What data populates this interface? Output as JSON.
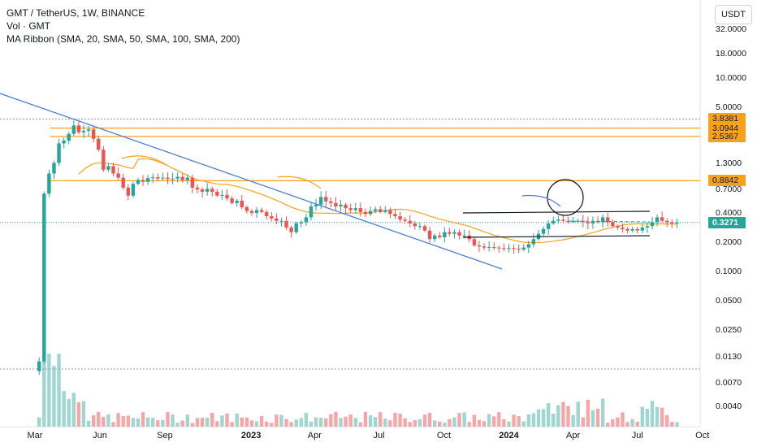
{
  "legend": {
    "title": "GMT / TetherUS, 1W, BINANCE",
    "volume": "Vol · GMT",
    "ribbon": "MA Ribbon (SMA, 20, SMA, 50, SMA, 100, SMA, 200)"
  },
  "currency_button": "USDT",
  "colors": {
    "up": "#26a69a",
    "down": "#ef5350",
    "vol_up": "#9fd6d0",
    "vol_down": "#f4a7a6",
    "trendline": "#4a7fd8",
    "level": "#f7a21b",
    "ma": "#f7a21b",
    "current_price": "#26a69a",
    "channel": "#131722",
    "arc": "#5b7bd6"
  },
  "chart_data": {
    "type": "candlestick",
    "title": "GMT / TetherUS, 1W, BINANCE",
    "y_scale": "log",
    "y_ticks": [
      "32.0000",
      "18.0000",
      "10.0000",
      "5.0000",
      "1.3000",
      "0.7000",
      "0.4000",
      "0.2000",
      "0.1000",
      "0.0500",
      "0.0250",
      "0.0130",
      "0.0070",
      "0.0040"
    ],
    "x_ticks": [
      {
        "label": "Mar",
        "date": "2022-03",
        "bold": false
      },
      {
        "label": "Jun",
        "date": "2022-06",
        "bold": false
      },
      {
        "label": "Sep",
        "date": "2022-09",
        "bold": false
      },
      {
        "label": "2023",
        "date": "2023-01",
        "bold": true
      },
      {
        "label": "Apr",
        "date": "2023-04",
        "bold": false
      },
      {
        "label": "Jul",
        "date": "2023-07",
        "bold": false
      },
      {
        "label": "Oct",
        "date": "2023-10",
        "bold": false
      },
      {
        "label": "2024",
        "date": "2024-01",
        "bold": true
      },
      {
        "label": "Apr",
        "date": "2024-04",
        "bold": false
      },
      {
        "label": "Jul",
        "date": "2024-07",
        "bold": false
      },
      {
        "label": "Oct",
        "date": "2024-10",
        "bold": false
      }
    ],
    "horizontal_levels": [
      {
        "value": 3.8381,
        "label": "3.8381"
      },
      {
        "value": 3.0944,
        "label": "3.0944"
      },
      {
        "value": 2.5367,
        "label": "2.5367"
      },
      {
        "value": 0.8842,
        "label": "0.8842"
      }
    ],
    "current_price": {
      "value": 0.3271,
      "label": "0.3271"
    },
    "series": [
      {
        "name": "GMT",
        "date_start": "2022-03-07",
        "interval": "week",
        "close": [
          0.012,
          0.65,
          1.05,
          1.35,
          2.15,
          2.3,
          2.7,
          3.3,
          2.8,
          2.9,
          3.0,
          2.4,
          1.85,
          1.15,
          1.25,
          1.05,
          0.95,
          0.75,
          0.62,
          0.82,
          0.9,
          0.86,
          0.94,
          0.96,
          0.93,
          0.95,
          0.92,
          0.93,
          0.97,
          0.9,
          0.95,
          0.75,
          0.72,
          0.68,
          0.73,
          0.68,
          0.62,
          0.63,
          0.58,
          0.52,
          0.55,
          0.47,
          0.43,
          0.41,
          0.44,
          0.42,
          0.38,
          0.36,
          0.34,
          0.34,
          0.29,
          0.26,
          0.32,
          0.33,
          0.37,
          0.48,
          0.5,
          0.6,
          0.54,
          0.52,
          0.48,
          0.5,
          0.46,
          0.44,
          0.46,
          0.42,
          0.4,
          0.43,
          0.45,
          0.42,
          0.44,
          0.4,
          0.38,
          0.35,
          0.34,
          0.32,
          0.3,
          0.3,
          0.27,
          0.22,
          0.24,
          0.23,
          0.26,
          0.25,
          0.26,
          0.24,
          0.24,
          0.22,
          0.19,
          0.185,
          0.18,
          0.182,
          0.18,
          0.178,
          0.176,
          0.178,
          0.175,
          0.172,
          0.18,
          0.195,
          0.22,
          0.25,
          0.28,
          0.32,
          0.34,
          0.35,
          0.34,
          0.33,
          0.34,
          0.34,
          0.33,
          0.32,
          0.34,
          0.33,
          0.37,
          0.33,
          0.3,
          0.29,
          0.28,
          0.27,
          0.28,
          0.27,
          0.29,
          0.3,
          0.33,
          0.37,
          0.34,
          0.33,
          0.32,
          0.3271
        ]
      }
    ]
  }
}
